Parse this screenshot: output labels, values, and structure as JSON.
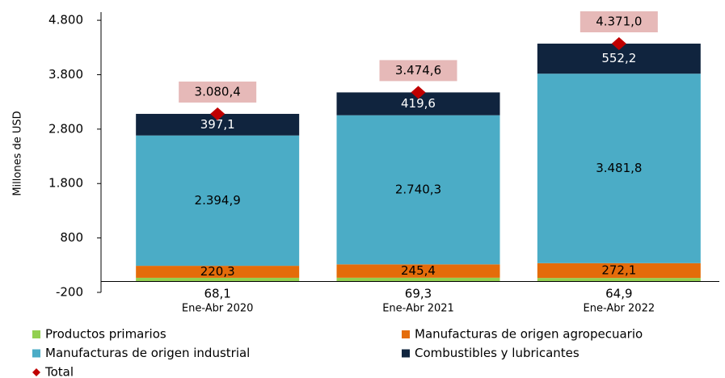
{
  "chart_data": {
    "type": "stacked_bar",
    "y_label": "Millones de  USD",
    "categories": [
      "Ene-Abr 2020",
      "Ene-Abr 2021",
      "Ene-Abr 2022"
    ],
    "ylim": [
      -200,
      4950
    ],
    "yticks": [
      -200,
      800,
      {
        "value": 1800,
        "label": "1.800"
      },
      {
        "value": 2800,
        "label": "2.800"
      },
      {
        "value": 3800,
        "label": "3.800"
      },
      {
        "value": 4800,
        "label": "4.800"
      }
    ],
    "series": [
      {
        "name": "Productos primarios",
        "color": "#92d050",
        "values": [
          68.1,
          69.3,
          64.9
        ],
        "value_labels": [
          "68,1",
          "69,3",
          "64,9"
        ]
      },
      {
        "name": "Manufacturas de origen agropecuario",
        "color": "#e46c0a",
        "values": [
          220.3,
          245.4,
          272.1
        ],
        "value_labels": [
          "220,3",
          "245,4",
          "272,1"
        ]
      },
      {
        "name": "Manufacturas de origen industrial",
        "color": "#4bacc6",
        "values": [
          2394.9,
          2740.3,
          3481.8
        ],
        "value_labels": [
          "2.394,9",
          "2.740,3",
          "3.481,8"
        ]
      },
      {
        "name": "Combustibles y lubricantes",
        "color": "#10243e",
        "values": [
          397.1,
          419.6,
          552.2
        ],
        "value_labels": [
          "397,1",
          "419,6",
          "552,2"
        ]
      }
    ],
    "total": {
      "name": "Total",
      "color": "#c00000",
      "values": [
        3080.4,
        3474.6,
        4371.0
      ],
      "value_labels": [
        "3.080,4",
        "3.474,6",
        "4.371,0"
      ]
    }
  }
}
